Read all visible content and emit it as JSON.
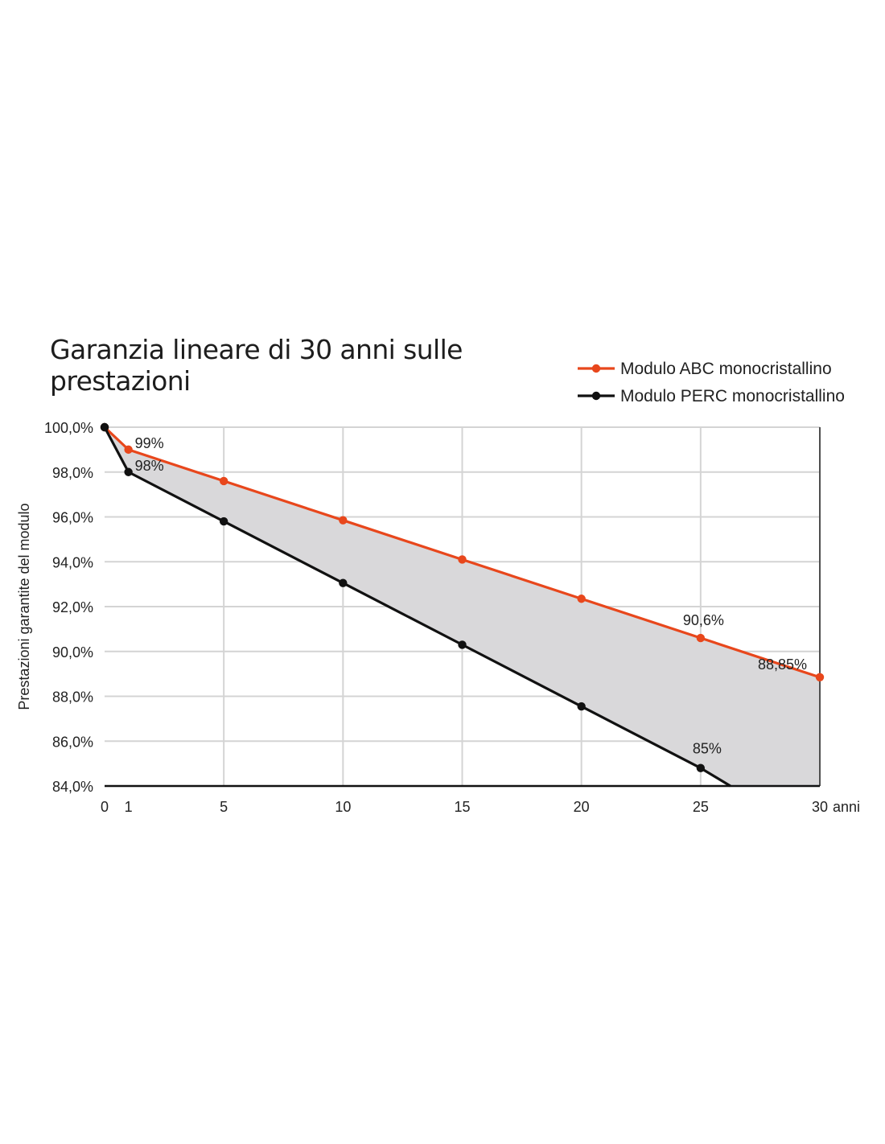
{
  "chart_data": {
    "type": "line",
    "title": "Garanzia lineare di 30 anni sulle prestazioni",
    "title_lines": [
      "Garanzia lineare di 30 anni sulle",
      "prestazioni"
    ],
    "xlabel": "anni",
    "ylabel": "Prestazioni garantite del modulo",
    "xlim": [
      0,
      30
    ],
    "ylim": [
      84,
      100
    ],
    "x_ticks": [
      0,
      1,
      5,
      10,
      15,
      20,
      25,
      30
    ],
    "x_tick_labels": [
      "0",
      "1",
      "5",
      "10",
      "15",
      "20",
      "25",
      "30"
    ],
    "y_ticks": [
      84,
      86,
      88,
      90,
      92,
      94,
      96,
      98,
      100
    ],
    "y_tick_labels": [
      "84,0%",
      "86,0%",
      "88,0%",
      "90,0%",
      "92,0%",
      "94,0%",
      "96,0%",
      "98,0%",
      "100,0%"
    ],
    "grid": true,
    "legend_position": "top-right",
    "shaded_between_series": true,
    "colors": {
      "abc": "#e8471c",
      "perc": "#111111",
      "fill": "#d9d8da",
      "grid": "#d4d4d4"
    },
    "series": [
      {
        "name": "Modulo ABC monocristallino",
        "color": "#e8471c",
        "x": [
          0,
          1,
          5,
          10,
          15,
          20,
          25,
          30
        ],
        "y": [
          100,
          99,
          97.6,
          95.85,
          94.1,
          92.35,
          90.6,
          88.85
        ]
      },
      {
        "name": "Modulo PERC monocristallino",
        "color": "#111111",
        "x": [
          0,
          1,
          5,
          10,
          15,
          20,
          25,
          26.25
        ],
        "y": [
          100,
          98,
          95.8,
          93.05,
          90.3,
          87.55,
          84.8,
          84.0
        ],
        "markers_count": 7
      }
    ],
    "annotations": [
      {
        "text": "99%",
        "x": 1,
        "y": 99,
        "series": "Modulo ABC monocristallino"
      },
      {
        "text": "98%",
        "x": 1,
        "y": 98,
        "series": "Modulo PERC monocristallino"
      },
      {
        "text": "90,6%",
        "x": 25,
        "y": 90.6,
        "series": "Modulo ABC monocristallino"
      },
      {
        "text": "88,85%",
        "x": 30,
        "y": 88.85,
        "series": "Modulo ABC monocristallino"
      },
      {
        "text": "85%",
        "x": 25,
        "y": 84.8,
        "series": "Modulo PERC monocristallino"
      }
    ]
  }
}
